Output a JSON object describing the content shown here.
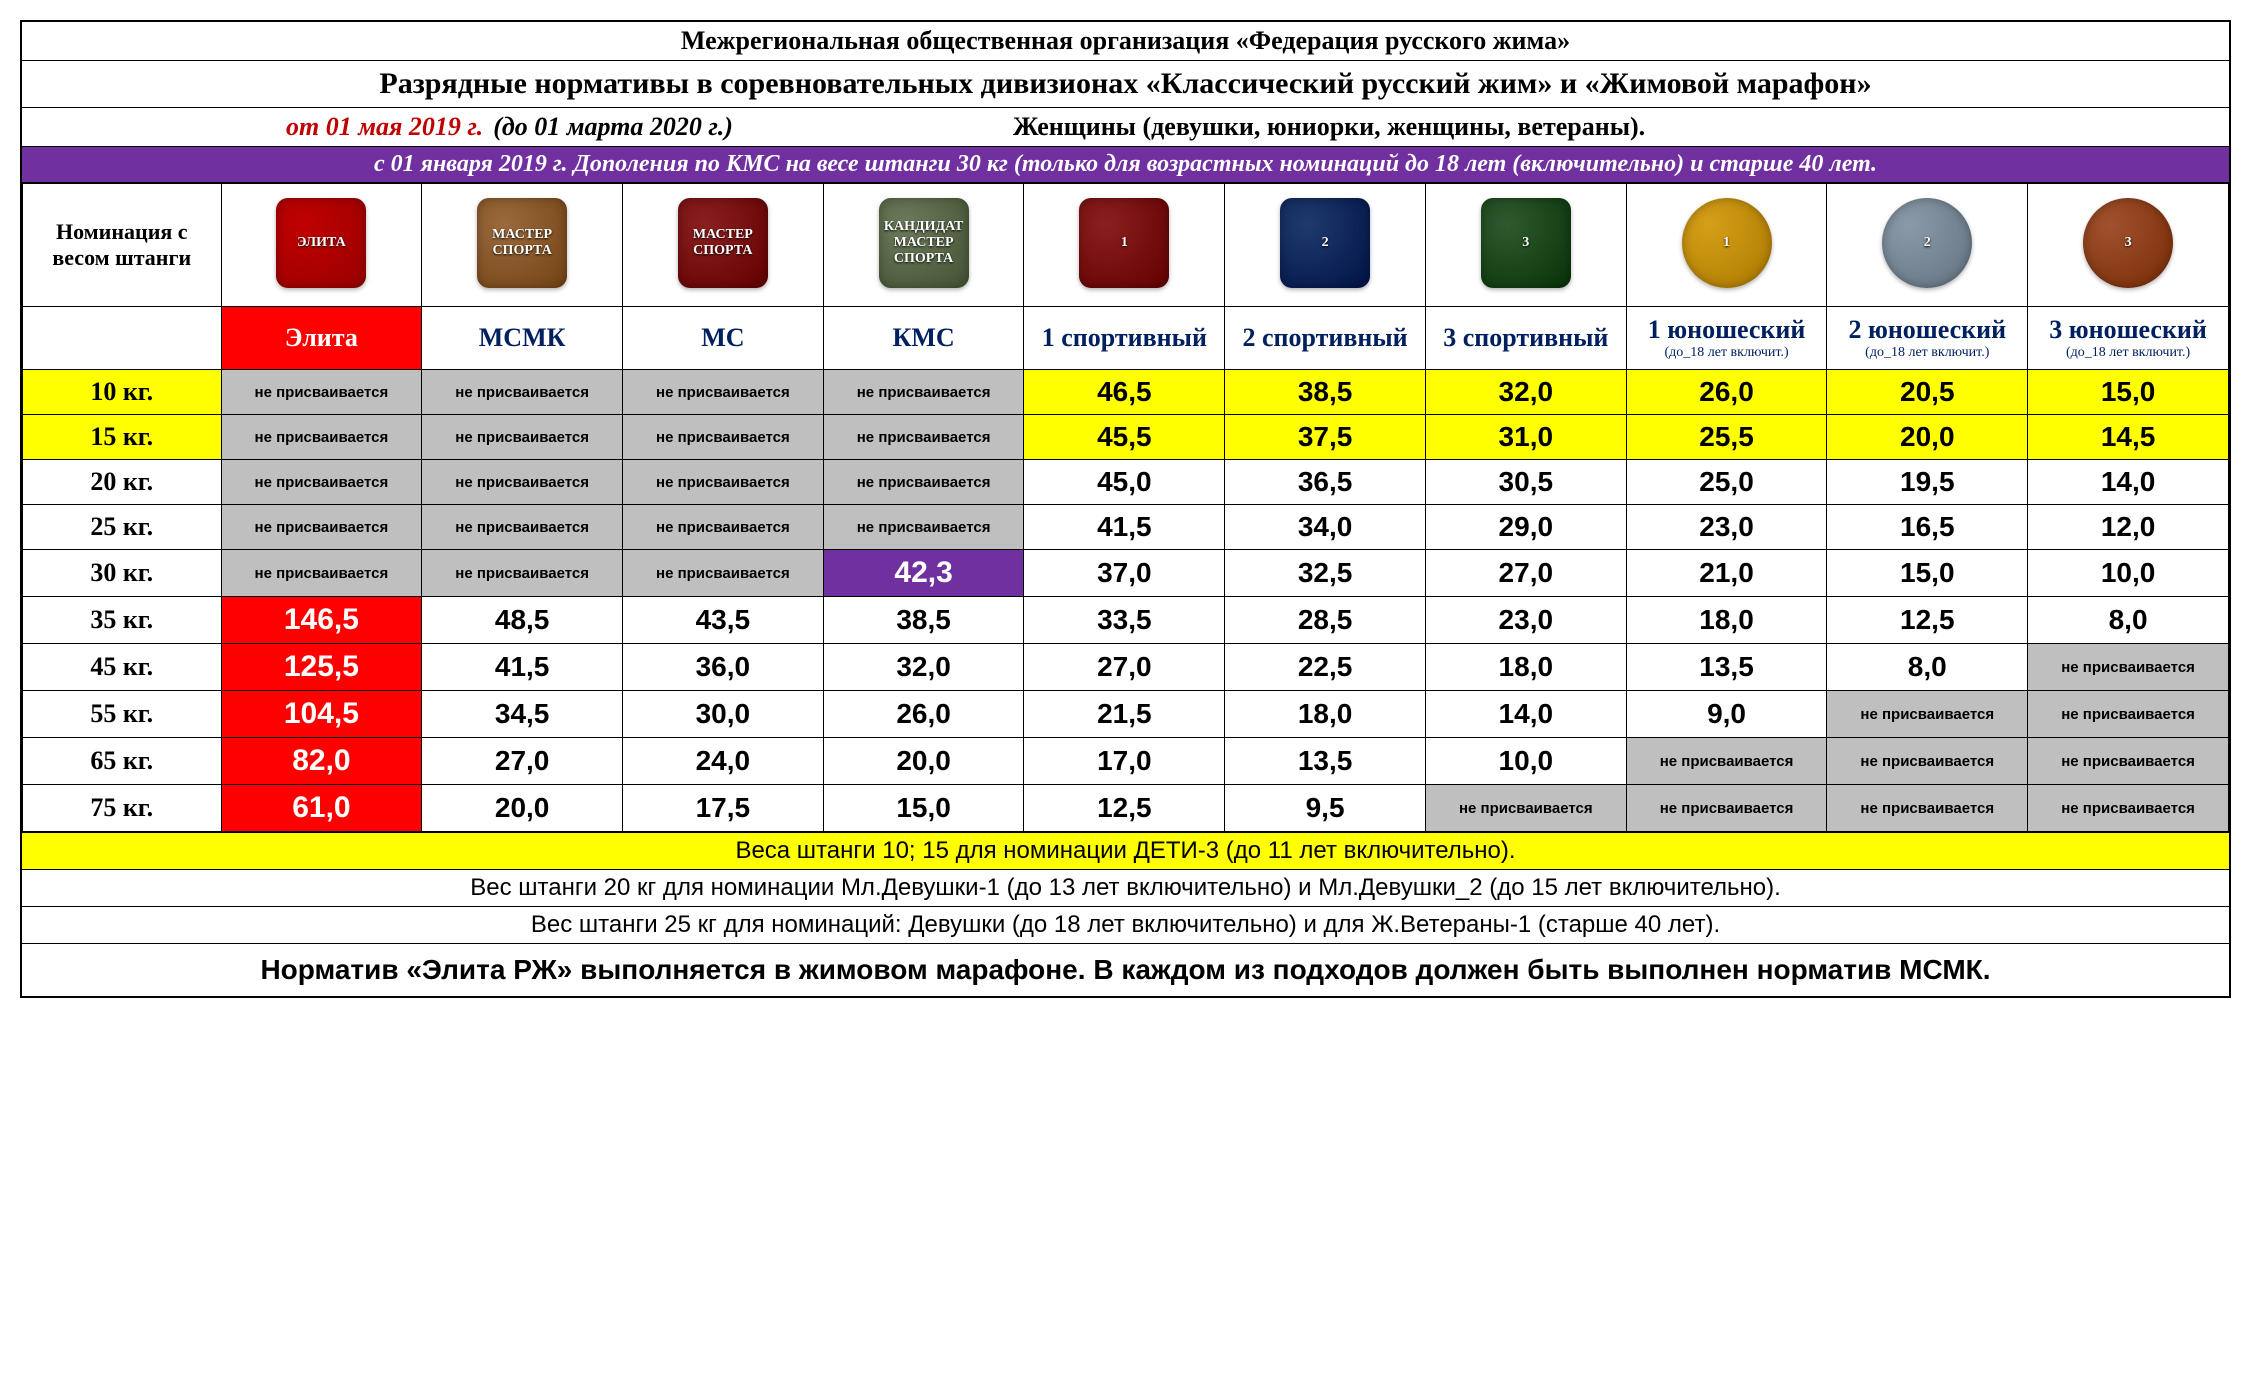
{
  "header": {
    "org": "Межрегиональная общественная организация «Федерация русского жима»",
    "title": "Разрядные нормативы в соревновательных дивизионах «Классический русский жим» и «Жимовой марафон»",
    "date_from": "от 01 мая 2019 г.",
    "date_to": "(до 01 марта 2020 г.)",
    "women_note": "Женщины (девушки, юниорки, женщины, ветераны).",
    "purple_note": "с 01 января 2019 г.   Дополения по КМС на весе штанги 30 кг (только для возрастных номинаций до 18 лет (включительно) и старше 40 лет."
  },
  "row_header_label": "Номинация с весом штанги",
  "na_text": "не присваивается",
  "columns": [
    {
      "key": "elite",
      "label": "Элита",
      "sub": "",
      "badge_bg": "#c00000",
      "badge_text": "ЭЛИТА",
      "badge_shape": "square"
    },
    {
      "key": "msmk",
      "label": "МСМК",
      "sub": "",
      "badge_bg": "#9b6a3c",
      "badge_text": "МАСТЕР\\nСПОРТА",
      "badge_shape": "square"
    },
    {
      "key": "ms",
      "label": "МС",
      "sub": "",
      "badge_bg": "#8a1f1f",
      "badge_text": "МАСТЕР\\nСПОРТА",
      "badge_shape": "square"
    },
    {
      "key": "kms",
      "label": "КМС",
      "sub": "",
      "badge_bg": "#6b7a5a",
      "badge_text": "КАНДИДАТ\\nМАСТЕР\\nСПОРТА",
      "badge_shape": "square"
    },
    {
      "key": "s1",
      "label": "1 спортивный",
      "sub": "",
      "badge_bg": "#8a1f1f",
      "badge_text": "1",
      "badge_shape": "square"
    },
    {
      "key": "s2",
      "label": "2 спортивный",
      "sub": "",
      "badge_bg": "#1f3a6e",
      "badge_text": "2",
      "badge_shape": "square"
    },
    {
      "key": "s3",
      "label": "3 спортивный",
      "sub": "",
      "badge_bg": "#2f5a2f",
      "badge_text": "3",
      "badge_shape": "square"
    },
    {
      "key": "y1",
      "label": "1 юношеский",
      "sub": "(до_18 лет включит.)",
      "badge_bg": "#d4a017",
      "badge_text": "1",
      "badge_shape": "round"
    },
    {
      "key": "y2",
      "label": "2 юношеский",
      "sub": "(до_18 лет включит.)",
      "badge_bg": "#8a9aa8",
      "badge_text": "2",
      "badge_shape": "round"
    },
    {
      "key": "y3",
      "label": "3 юношеский",
      "sub": "(до_18 лет включит.)",
      "badge_bg": "#a0522d",
      "badge_text": "3",
      "badge_shape": "round"
    }
  ],
  "rows": [
    {
      "key": "10 кг.",
      "yellow": true,
      "cells": [
        "na",
        "na",
        "na",
        "na",
        "46,5",
        "38,5",
        "32,0",
        "26,0",
        "20,5",
        "15,0"
      ]
    },
    {
      "key": "15 кг.",
      "yellow": true,
      "cells": [
        "na",
        "na",
        "na",
        "na",
        "45,5",
        "37,5",
        "31,0",
        "25,5",
        "20,0",
        "14,5"
      ]
    },
    {
      "key": "20 кг.",
      "yellow": false,
      "cells": [
        "na",
        "na",
        "na",
        "na",
        "45,0",
        "36,5",
        "30,5",
        "25,0",
        "19,5",
        "14,0"
      ]
    },
    {
      "key": "25 кг.",
      "yellow": false,
      "cells": [
        "na",
        "na",
        "na",
        "na",
        "41,5",
        "34,0",
        "29,0",
        "23,0",
        "16,5",
        "12,0"
      ]
    },
    {
      "key": "30 кг.",
      "yellow": false,
      "cells": [
        "na",
        "na",
        "na",
        "kms:42,3",
        "37,0",
        "32,5",
        "27,0",
        "21,0",
        "15,0",
        "10,0"
      ]
    },
    {
      "key": "35 кг.",
      "yellow": false,
      "cells": [
        "elite:146,5",
        "48,5",
        "43,5",
        "38,5",
        "33,5",
        "28,5",
        "23,0",
        "18,0",
        "12,5",
        "8,0"
      ]
    },
    {
      "key": "45 кг.",
      "yellow": false,
      "cells": [
        "elite:125,5",
        "41,5",
        "36,0",
        "32,0",
        "27,0",
        "22,5",
        "18,0",
        "13,5",
        "8,0",
        "na"
      ]
    },
    {
      "key": "55 кг.",
      "yellow": false,
      "cells": [
        "elite:104,5",
        "34,5",
        "30,0",
        "26,0",
        "21,5",
        "18,0",
        "14,0",
        "9,0",
        "na",
        "na"
      ]
    },
    {
      "key": "65 кг.",
      "yellow": false,
      "cells": [
        "elite:82,0",
        "27,0",
        "24,0",
        "20,0",
        "17,0",
        "13,5",
        "10,0",
        "na",
        "na",
        "na"
      ]
    },
    {
      "key": "75 кг.",
      "yellow": false,
      "cells": [
        "elite:61,0",
        "20,0",
        "17,5",
        "15,0",
        "12,5",
        "9,5",
        "na",
        "na",
        "na",
        "na"
      ]
    }
  ],
  "footer": {
    "note_yellow": "Веса штанги 10; 15 для номинации ДЕТИ-3 (до 11 лет включительно).",
    "note1": "Вес штанги 20 кг для номинации Мл.Девушки-1 (до 13 лет включительно) и Мл.Девушки_2 (до 15 лет включительно).",
    "note2": "Вес штанги 25 кг для номинаций: Девушки (до 18 лет включительно) и для Ж.Ветераны-1 (старше 40 лет).",
    "note_final": "Норматив «Элита РЖ» выполняется в жимовом марафоне. В каждом из подходов должен быть выполнен норматив МСМК."
  },
  "colors": {
    "purple": "#7030a0",
    "red": "#ff0000",
    "yellow": "#ffff00",
    "na_bg": "#bfbfbf",
    "header_text": "#002060"
  }
}
